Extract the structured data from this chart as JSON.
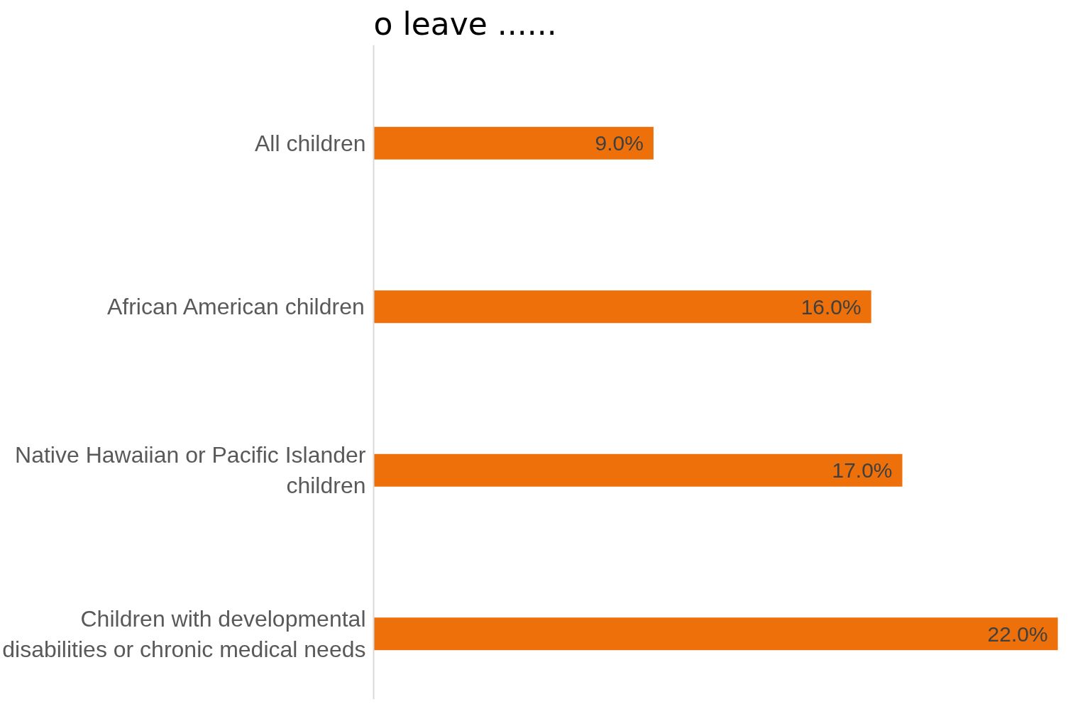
{
  "chart_data": {
    "type": "bar",
    "orientation": "horizontal",
    "title": "o leave ......",
    "categories": [
      "All children",
      "African American children",
      "Native Hawaiian or Pacific Islander children",
      "Children with developmental disabilities or chronic medical needs"
    ],
    "values": [
      9.0,
      16.0,
      17.0,
      22.0
    ],
    "color": "#ed700a",
    "value_labels": [
      "9.0%",
      "16.0%",
      "17.0%",
      "22.0%"
    ]
  }
}
